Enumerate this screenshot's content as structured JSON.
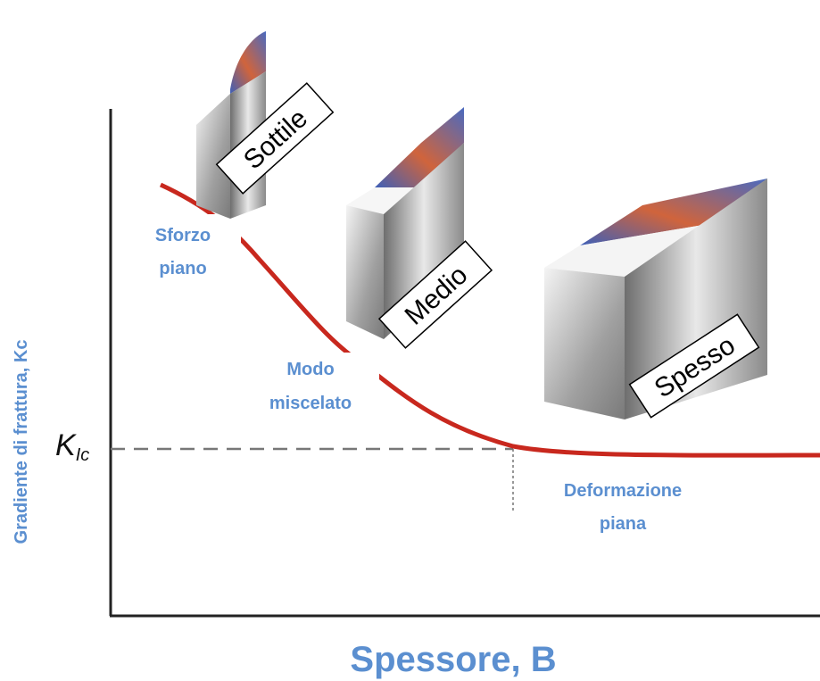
{
  "axis": {
    "y_label": "Gradiente di frattura, Kc",
    "x_label": "Spessore, B",
    "k_label": {
      "main": "K",
      "sub": "Ic"
    }
  },
  "regions": [
    {
      "lines": [
        "Sforzo",
        "piano"
      ]
    },
    {
      "lines": [
        "Modo",
        "miscelato"
      ]
    },
    {
      "lines": [
        "Deformazione",
        "piana"
      ]
    }
  ],
  "specimens": [
    {
      "label": "Sottile"
    },
    {
      "label": "Medio"
    },
    {
      "label": "Spesso"
    }
  ]
}
